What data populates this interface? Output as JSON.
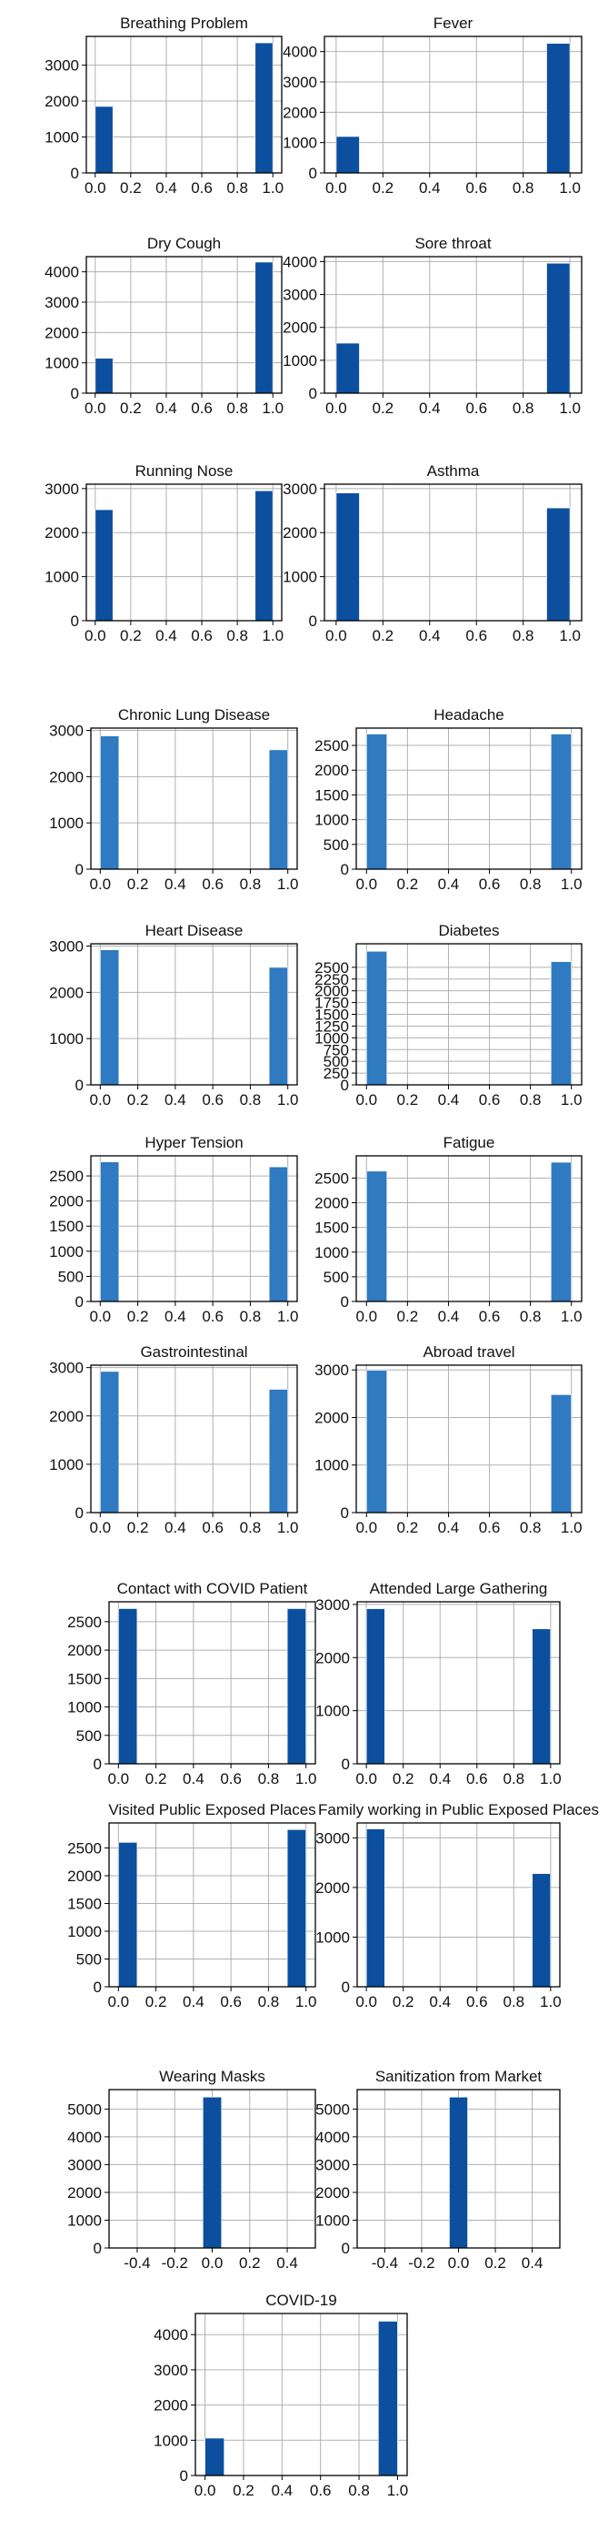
{
  "figure": {
    "layout": "histogram grid, 2 columns"
  },
  "colors": {
    "bar_dark": "#0b4f9e",
    "bar_light": "#2f7ac0",
    "grid": "#b0b0b0",
    "axis": "#000000"
  },
  "chart_data": [
    {
      "type": "bar",
      "title": "Breathing Problem",
      "x": [
        0.05,
        0.95
      ],
      "values": [
        1850,
        3620
      ],
      "xlim": [
        -0.05,
        1.05
      ],
      "ylim": [
        0,
        3800
      ],
      "xticks": [
        "0.0",
        "0.2",
        "0.4",
        "0.6",
        "0.8",
        "1.0"
      ],
      "yticks": [
        "0",
        "1000",
        "2000",
        "3000"
      ],
      "grid": true
    },
    {
      "type": "bar",
      "title": "Fever",
      "x": [
        0.05,
        0.95
      ],
      "values": [
        1200,
        4270
      ],
      "xlim": [
        -0.05,
        1.05
      ],
      "ylim": [
        0,
        4500
      ],
      "xticks": [
        "0.0",
        "0.2",
        "0.4",
        "0.6",
        "0.8",
        "1.0"
      ],
      "yticks": [
        "0",
        "1000",
        "2000",
        "3000",
        "4000"
      ],
      "grid": true
    },
    {
      "type": "bar",
      "title": "Dry Cough",
      "x": [
        0.05,
        0.95
      ],
      "values": [
        1150,
        4320
      ],
      "xlim": [
        -0.05,
        1.05
      ],
      "ylim": [
        0,
        4500
      ],
      "xticks": [
        "0.0",
        "0.2",
        "0.4",
        "0.6",
        "0.8",
        "1.0"
      ],
      "yticks": [
        "0",
        "1000",
        "2000",
        "3000",
        "4000"
      ],
      "grid": true
    },
    {
      "type": "bar",
      "title": "Sore throat",
      "x": [
        0.05,
        0.95
      ],
      "values": [
        1520,
        3950
      ],
      "xlim": [
        -0.05,
        1.05
      ],
      "ylim": [
        0,
        4150
      ],
      "xticks": [
        "0.0",
        "0.2",
        "0.4",
        "0.6",
        "0.8",
        "1.0"
      ],
      "yticks": [
        "0",
        "1000",
        "2000",
        "3000",
        "4000"
      ],
      "grid": true
    },
    {
      "type": "bar",
      "title": "Running Nose",
      "x": [
        0.05,
        0.95
      ],
      "values": [
        2520,
        2950
      ],
      "xlim": [
        -0.05,
        1.05
      ],
      "ylim": [
        0,
        3100
      ],
      "xticks": [
        "0.0",
        "0.2",
        "0.4",
        "0.6",
        "0.8",
        "1.0"
      ],
      "yticks": [
        "0",
        "1000",
        "2000",
        "3000"
      ],
      "grid": true
    },
    {
      "type": "bar",
      "title": "Asthma",
      "x": [
        0.05,
        0.95
      ],
      "values": [
        2900,
        2560
      ],
      "xlim": [
        -0.05,
        1.05
      ],
      "ylim": [
        0,
        3100
      ],
      "xticks": [
        "0.0",
        "0.2",
        "0.4",
        "0.6",
        "0.8",
        "1.0"
      ],
      "yticks": [
        "0",
        "1000",
        "2000",
        "3000"
      ],
      "grid": true
    },
    {
      "type": "bar",
      "title": "Chronic Lung Disease",
      "x": [
        0.05,
        0.95
      ],
      "values": [
        2880,
        2580
      ],
      "xlim": [
        -0.05,
        1.05
      ],
      "ylim": [
        0,
        3050
      ],
      "xticks": [
        "0.0",
        "0.2",
        "0.4",
        "0.6",
        "0.8",
        "1.0"
      ],
      "yticks": [
        "0",
        "1000",
        "2000",
        "3000"
      ],
      "grid": true
    },
    {
      "type": "bar",
      "title": "Headache",
      "x": [
        0.05,
        0.95
      ],
      "values": [
        2730,
        2730
      ],
      "xlim": [
        -0.05,
        1.05
      ],
      "ylim": [
        0,
        2850
      ],
      "xticks": [
        "0.0",
        "0.2",
        "0.4",
        "0.6",
        "0.8",
        "1.0"
      ],
      "yticks": [
        "0",
        "500",
        "1000",
        "1500",
        "2000",
        "2500"
      ],
      "grid": true
    },
    {
      "type": "bar",
      "title": "Heart Disease",
      "x": [
        0.05,
        0.95
      ],
      "values": [
        2920,
        2540
      ],
      "xlim": [
        -0.05,
        1.05
      ],
      "ylim": [
        0,
        3050
      ],
      "xticks": [
        "0.0",
        "0.2",
        "0.4",
        "0.6",
        "0.8",
        "1.0"
      ],
      "yticks": [
        "0",
        "1000",
        "2000",
        "3000"
      ],
      "grid": true
    },
    {
      "type": "bar",
      "title": "Diabetes",
      "x": [
        0.05,
        0.95
      ],
      "values": [
        2840,
        2620
      ],
      "xlim": [
        -0.05,
        1.05
      ],
      "ylim": [
        0,
        3000
      ],
      "xticks": [
        "0.0",
        "0.2",
        "0.4",
        "0.6",
        "0.8",
        "1.0"
      ],
      "yticks": [
        "0",
        "250",
        "500",
        "750",
        "1000",
        "1250",
        "1500",
        "1750",
        "2000",
        "2250",
        "2500"
      ],
      "grid": true
    },
    {
      "type": "bar",
      "title": "Hyper Tension",
      "x": [
        0.05,
        0.95
      ],
      "values": [
        2780,
        2680
      ],
      "xlim": [
        -0.05,
        1.05
      ],
      "ylim": [
        0,
        2900
      ],
      "xticks": [
        "0.0",
        "0.2",
        "0.4",
        "0.6",
        "0.8",
        "1.0"
      ],
      "yticks": [
        "0",
        "500",
        "1000",
        "1500",
        "2000",
        "2500"
      ],
      "grid": true
    },
    {
      "type": "bar",
      "title": "Fatigue",
      "x": [
        0.05,
        0.95
      ],
      "values": [
        2640,
        2820
      ],
      "xlim": [
        -0.05,
        1.05
      ],
      "ylim": [
        0,
        2950
      ],
      "xticks": [
        "0.0",
        "0.2",
        "0.4",
        "0.6",
        "0.8",
        "1.0"
      ],
      "yticks": [
        "0",
        "500",
        "1000",
        "1500",
        "2000",
        "2500"
      ],
      "grid": true
    },
    {
      "type": "bar",
      "title": "Gastrointestinal",
      "x": [
        0.05,
        0.95
      ],
      "values": [
        2920,
        2550
      ],
      "xlim": [
        -0.05,
        1.05
      ],
      "ylim": [
        0,
        3050
      ],
      "xticks": [
        "0.0",
        "0.2",
        "0.4",
        "0.6",
        "0.8",
        "1.0"
      ],
      "yticks": [
        "0",
        "1000",
        "2000",
        "3000"
      ],
      "grid": true
    },
    {
      "type": "bar",
      "title": "Abroad travel",
      "x": [
        0.05,
        0.95
      ],
      "values": [
        2990,
        2480
      ],
      "xlim": [
        -0.05,
        1.05
      ],
      "ylim": [
        0,
        3100
      ],
      "xticks": [
        "0.0",
        "0.2",
        "0.4",
        "0.6",
        "0.8",
        "1.0"
      ],
      "yticks": [
        "0",
        "1000",
        "2000",
        "3000"
      ],
      "grid": true
    },
    {
      "type": "bar",
      "title": "Contact with COVID Patient",
      "x": [
        0.05,
        0.95
      ],
      "values": [
        2730,
        2730
      ],
      "xlim": [
        -0.05,
        1.05
      ],
      "ylim": [
        0,
        2850
      ],
      "xticks": [
        "0.0",
        "0.2",
        "0.4",
        "0.6",
        "0.8",
        "1.0"
      ],
      "yticks": [
        "0",
        "500",
        "1000",
        "1500",
        "2000",
        "2500"
      ],
      "grid": true
    },
    {
      "type": "bar",
      "title": "Attended Large Gathering",
      "x": [
        0.05,
        0.95
      ],
      "values": [
        2920,
        2540
      ],
      "xlim": [
        -0.05,
        1.05
      ],
      "ylim": [
        0,
        3050
      ],
      "xticks": [
        "0.0",
        "0.2",
        "0.4",
        "0.6",
        "0.8",
        "1.0"
      ],
      "yticks": [
        "0",
        "1000",
        "2000",
        "3000"
      ],
      "grid": true
    },
    {
      "type": "bar",
      "title": "Visited Public Exposed Places",
      "x": [
        0.05,
        0.95
      ],
      "values": [
        2600,
        2830
      ],
      "xlim": [
        -0.05,
        1.05
      ],
      "ylim": [
        0,
        2950
      ],
      "xticks": [
        "0.0",
        "0.2",
        "0.4",
        "0.6",
        "0.8",
        "1.0"
      ],
      "yticks": [
        "0",
        "500",
        "1000",
        "1500",
        "2000",
        "2500"
      ],
      "grid": true
    },
    {
      "type": "bar",
      "title": "Family working in Public Exposed Places",
      "x": [
        0.05,
        0.95
      ],
      "values": [
        3180,
        2280
      ],
      "xlim": [
        -0.05,
        1.05
      ],
      "ylim": [
        0,
        3300
      ],
      "xticks": [
        "0.0",
        "0.2",
        "0.4",
        "0.6",
        "0.8",
        "1.0"
      ],
      "yticks": [
        "0",
        "1000",
        "2000",
        "3000"
      ],
      "grid": true
    },
    {
      "type": "bar",
      "title": "Wearing Masks",
      "x": [
        0.0
      ],
      "values": [
        5430
      ],
      "xlim": [
        -0.55,
        0.55
      ],
      "ylim": [
        0,
        5700
      ],
      "xticks": [
        "-0.4",
        "-0.2",
        "0.0",
        "0.2",
        "0.4"
      ],
      "yticks": [
        "0",
        "1000",
        "2000",
        "3000",
        "4000",
        "5000"
      ],
      "grid": true
    },
    {
      "type": "bar",
      "title": "Sanitization from Market",
      "x": [
        0.0
      ],
      "values": [
        5430
      ],
      "xlim": [
        -0.55,
        0.55
      ],
      "ylim": [
        0,
        5700
      ],
      "xticks": [
        "-0.4",
        "-0.2",
        "0.0",
        "0.2",
        "0.4"
      ],
      "yticks": [
        "0",
        "1000",
        "2000",
        "3000",
        "4000",
        "5000"
      ],
      "grid": true
    },
    {
      "type": "bar",
      "title": "COVID-19",
      "x": [
        0.05,
        0.95
      ],
      "values": [
        1060,
        4380
      ],
      "xlim": [
        -0.05,
        1.05
      ],
      "ylim": [
        0,
        4600
      ],
      "xticks": [
        "0.0",
        "0.2",
        "0.4",
        "0.6",
        "0.8",
        "1.0"
      ],
      "yticks": [
        "0",
        "1000",
        "2000",
        "3000",
        "4000"
      ],
      "grid": true
    }
  ]
}
